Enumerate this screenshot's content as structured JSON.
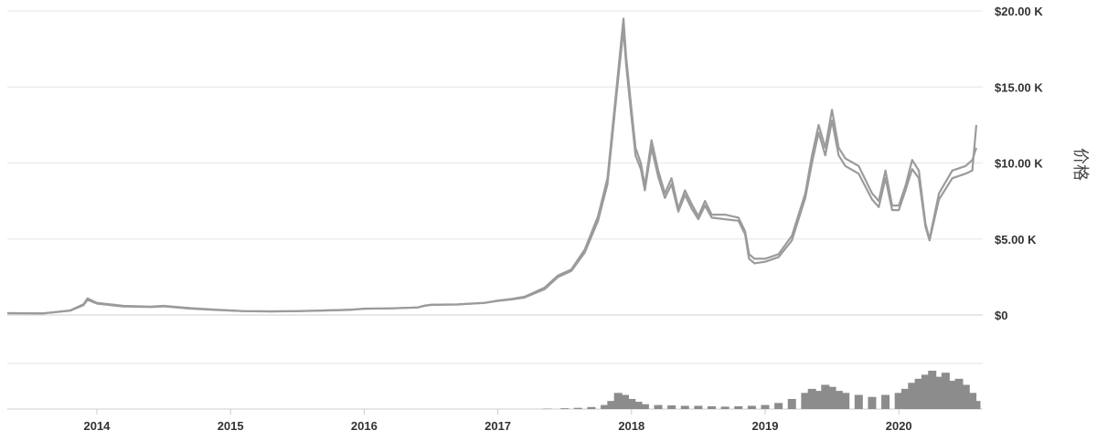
{
  "chart_data": {
    "type": "line",
    "title": "",
    "xlabel": "",
    "ylabel": "价格",
    "ylim": [
      0,
      20000
    ],
    "x_ticks": [
      "2014",
      "2015",
      "2016",
      "2017",
      "2018",
      "2019",
      "2020"
    ],
    "y_ticks": [
      {
        "value": 0,
        "label": "$0"
      },
      {
        "value": 5000,
        "label": "$5.00 K"
      },
      {
        "value": 10000,
        "label": "$10.00 K"
      },
      {
        "value": 15000,
        "label": "$15.00 K"
      },
      {
        "value": 20000,
        "label": "$20.00 K"
      }
    ],
    "grid": true,
    "legend": "none",
    "colors": {
      "price_line": "#9b9b9b",
      "volume_bar": "#8c8c8c",
      "grid": "#e6e6e6",
      "axis": "#cccccc"
    },
    "series": [
      {
        "x": [
          2013.33,
          2013.6,
          2013.8,
          2013.9,
          2013.93,
          2014.0,
          2014.1,
          2014.2,
          2014.4,
          2014.5,
          2014.7,
          2014.9,
          2015.0,
          2015.1,
          2015.3,
          2015.5,
          2015.7,
          2015.9,
          2016.0,
          2016.2,
          2016.4,
          2016.45,
          2016.5,
          2016.7,
          2016.9,
          2017.0,
          2017.1,
          2017.2,
          2017.35,
          2017.45,
          2017.55,
          2017.65,
          2017.75,
          2017.82,
          2017.9,
          2017.94,
          2017.96,
          2018.0,
          2018.03,
          2018.07,
          2018.1,
          2018.15,
          2018.2,
          2018.25,
          2018.3,
          2018.35,
          2018.4,
          2018.45,
          2018.5,
          2018.55,
          2018.6,
          2018.7,
          2018.8,
          2018.85,
          2018.88,
          2018.92,
          2019.0,
          2019.1,
          2019.2,
          2019.3,
          2019.35,
          2019.4,
          2019.45,
          2019.5,
          2019.55,
          2019.6,
          2019.7,
          2019.8,
          2019.85,
          2019.9,
          2019.95,
          2020.0,
          2020.05,
          2020.1,
          2020.15,
          2020.2,
          2020.23,
          2020.3,
          2020.4,
          2020.5,
          2020.55,
          2020.58
        ],
        "values": [
          120,
          110,
          300,
          700,
          1100,
          800,
          700,
          600,
          550,
          600,
          450,
          350,
          300,
          260,
          240,
          260,
          300,
          350,
          420,
          440,
          500,
          620,
          680,
          700,
          800,
          950,
          1050,
          1200,
          1800,
          2600,
          3000,
          4300,
          6500,
          9000,
          16000,
          19500,
          17000,
          13500,
          11000,
          10000,
          8500,
          11500,
          9500,
          8000,
          9000,
          7000,
          8200,
          7300,
          6500,
          7500,
          6600,
          6600,
          6400,
          5500,
          4000,
          3700,
          3700,
          4000,
          5200,
          8000,
          10500,
          12500,
          11000,
          13500,
          11000,
          10300,
          9800,
          8000,
          7500,
          9500,
          7200,
          7200,
          8500,
          10200,
          9500,
          6000,
          5000,
          8000,
          9500,
          9800,
          10200,
          11000
        ]
      },
      {
        "x": [
          2013.33,
          2013.6,
          2013.8,
          2013.9,
          2013.93,
          2014.0,
          2014.1,
          2014.2,
          2014.4,
          2014.5,
          2014.7,
          2014.9,
          2015.0,
          2015.1,
          2015.3,
          2015.5,
          2015.7,
          2015.9,
          2016.0,
          2016.2,
          2016.4,
          2016.45,
          2016.5,
          2016.7,
          2016.9,
          2017.0,
          2017.1,
          2017.2,
          2017.35,
          2017.45,
          2017.55,
          2017.65,
          2017.75,
          2017.82,
          2017.9,
          2017.94,
          2017.96,
          2018.0,
          2018.03,
          2018.07,
          2018.1,
          2018.15,
          2018.2,
          2018.25,
          2018.3,
          2018.35,
          2018.4,
          2018.45,
          2018.5,
          2018.55,
          2018.6,
          2018.7,
          2018.8,
          2018.85,
          2018.88,
          2018.92,
          2019.0,
          2019.1,
          2019.2,
          2019.3,
          2019.35,
          2019.4,
          2019.45,
          2019.5,
          2019.55,
          2019.6,
          2019.7,
          2019.8,
          2019.85,
          2019.9,
          2019.95,
          2020.0,
          2020.05,
          2020.1,
          2020.15,
          2020.2,
          2020.23,
          2020.3,
          2020.4,
          2020.5,
          2020.55,
          2020.58
        ],
        "values": [
          120,
          110,
          280,
          650,
          1000,
          750,
          650,
          560,
          520,
          570,
          420,
          330,
          290,
          250,
          235,
          255,
          295,
          340,
          410,
          430,
          490,
          600,
          660,
          690,
          790,
          930,
          1020,
          1150,
          1700,
          2500,
          2900,
          4100,
          6200,
          8600,
          15500,
          18800,
          16500,
          13000,
          10500,
          9600,
          8200,
          11000,
          9100,
          7700,
          8600,
          6800,
          7900,
          7000,
          6300,
          7200,
          6400,
          6300,
          6200,
          5300,
          3700,
          3400,
          3500,
          3800,
          4900,
          7700,
          10000,
          12000,
          10500,
          12800,
          10500,
          9800,
          9300,
          7600,
          7100,
          9000,
          6900,
          6900,
          8200,
          9600,
          9000,
          5800,
          4900,
          7600,
          9000,
          9300,
          9500,
          12500
        ]
      }
    ],
    "volume": {
      "x": [
        2017.37,
        2017.5,
        2017.6,
        2017.7,
        2017.8,
        2017.85,
        2017.9,
        2017.95,
        2018.0,
        2018.05,
        2018.1,
        2018.2,
        2018.3,
        2018.4,
        2018.5,
        2018.6,
        2018.7,
        2018.8,
        2018.9,
        2019.0,
        2019.1,
        2019.2,
        2019.3,
        2019.35,
        2019.4,
        2019.45,
        2019.5,
        2019.55,
        2019.6,
        2019.7,
        2019.8,
        2019.9,
        2020.0,
        2020.05,
        2020.1,
        2020.15,
        2020.2,
        2020.25,
        2020.3,
        2020.35,
        2020.4,
        2020.45,
        2020.5,
        2020.55,
        2020.58
      ],
      "values": [
        1,
        2,
        3,
        5,
        10,
        20,
        40,
        35,
        25,
        18,
        12,
        10,
        9,
        8,
        8,
        7,
        6,
        7,
        8,
        10,
        15,
        25,
        40,
        50,
        45,
        60,
        55,
        45,
        40,
        35,
        30,
        35,
        40,
        50,
        65,
        75,
        85,
        95,
        80,
        90,
        70,
        75,
        60,
        40,
        20
      ]
    }
  }
}
